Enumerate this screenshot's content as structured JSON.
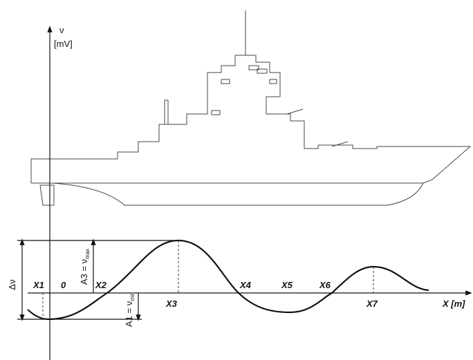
{
  "axis": {
    "y_symbol": "ν",
    "y_unit": "[mV]",
    "x_label": "X [m]"
  },
  "points": [
    "X1",
    "0",
    "X2",
    "X3",
    "X4",
    "X5",
    "X6",
    "X7"
  ],
  "amplitude": {
    "delta": "Δν",
    "a3": {
      "text": "A3 = ν",
      "sub": "max"
    },
    "a1": {
      "text": "A1 = ν",
      "sub": "min"
    }
  }
}
